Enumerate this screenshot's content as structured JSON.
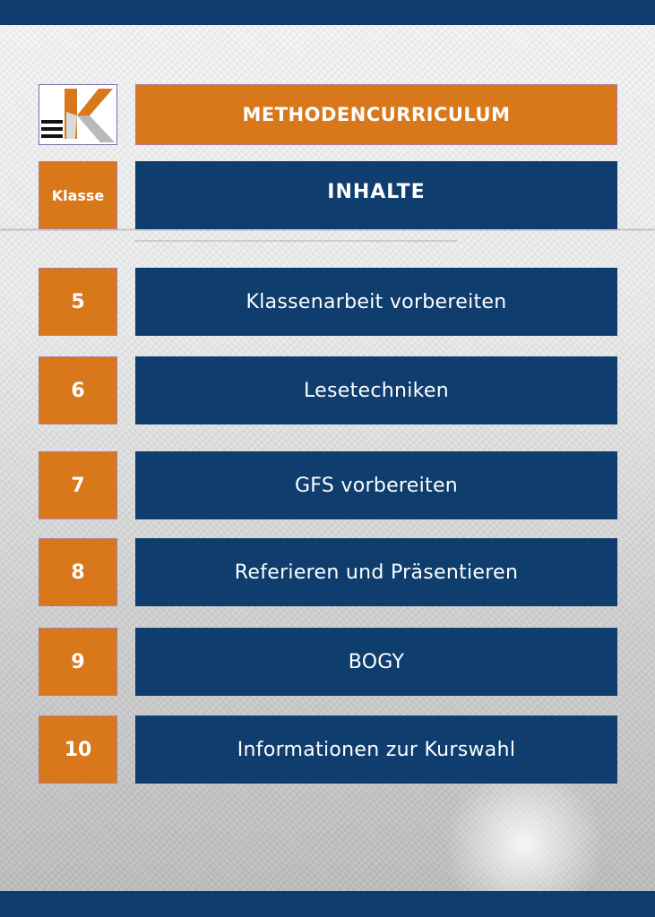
{
  "header": {
    "title": "METHODENCURRICULUM",
    "column_left": "Klasse",
    "column_right": "INHALTE"
  },
  "logo": {
    "icon": "school-logo-k-icon"
  },
  "rows": [
    {
      "grade": "5",
      "topic": "Klassenarbeit vorbereiten"
    },
    {
      "grade": "6",
      "topic": "Lesetechniken"
    },
    {
      "grade": "7",
      "topic": "GFS vorbereiten"
    },
    {
      "grade": "8",
      "topic": "Referieren und Präsentieren"
    },
    {
      "grade": "9",
      "topic": "BOGY"
    },
    {
      "grade": "10",
      "topic": "Informationen zur Kurswahl"
    }
  ],
  "colors": {
    "accent_orange": "#d8781a",
    "brand_blue": "#0e3d6e"
  }
}
